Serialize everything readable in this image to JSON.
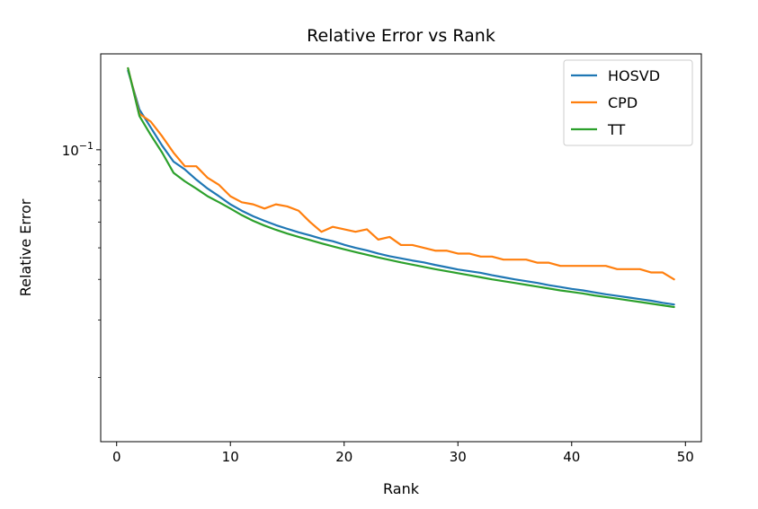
{
  "chart_data": {
    "type": "line",
    "title": "Relative Error vs Rank",
    "xlabel": "Rank",
    "ylabel": "Relative Error",
    "x_scale": "linear",
    "y_scale": "log",
    "xlim": [
      -1.4,
      51.4
    ],
    "ylim": [
      0.0127,
      0.197
    ],
    "x_ticks": [
      {
        "value": 0,
        "label": "0"
      },
      {
        "value": 10,
        "label": "10"
      },
      {
        "value": 20,
        "label": "20"
      },
      {
        "value": 30,
        "label": "30"
      },
      {
        "value": 40,
        "label": "40"
      },
      {
        "value": 50,
        "label": "50"
      }
    ],
    "y_major_ticks": [
      {
        "value": 0.1,
        "base": "10",
        "exponent": "−1"
      }
    ],
    "y_minor_ticks": [
      0.09,
      0.08,
      0.07,
      0.06,
      0.05,
      0.04,
      0.03,
      0.02
    ],
    "grid": false,
    "legend": {
      "position": "top-right"
    },
    "x": [
      1,
      2,
      3,
      4,
      5,
      6,
      7,
      8,
      9,
      10,
      11,
      12,
      13,
      14,
      15,
      16,
      17,
      18,
      19,
      20,
      21,
      22,
      23,
      24,
      25,
      26,
      27,
      28,
      29,
      30,
      31,
      32,
      33,
      34,
      35,
      36,
      37,
      38,
      39,
      40,
      41,
      42,
      43,
      44,
      45,
      46,
      47,
      48,
      49
    ],
    "series": [
      {
        "name": "HOSVD",
        "color": "#1f77b4",
        "values": [
          0.175,
          0.133,
          0.117,
          0.103,
          0.092,
          0.087,
          0.081,
          0.076,
          0.072,
          0.068,
          0.065,
          0.0625,
          0.0605,
          0.0587,
          0.0572,
          0.0558,
          0.0546,
          0.0533,
          0.0524,
          0.0511,
          0.05,
          0.0491,
          0.048,
          0.0471,
          0.0464,
          0.0457,
          0.0451,
          0.0443,
          0.0436,
          0.0429,
          0.0424,
          0.0419,
          0.0412,
          0.0406,
          0.04,
          0.0395,
          0.039,
          0.0384,
          0.0379,
          0.0374,
          0.037,
          0.0365,
          0.036,
          0.0356,
          0.0352,
          0.0348,
          0.0344,
          0.0339,
          0.0335
        ]
      },
      {
        "name": "CPD",
        "color": "#ff7f0e",
        "values": [
          0.178,
          0.129,
          0.122,
          0.11,
          0.098,
          0.089,
          0.089,
          0.082,
          0.078,
          0.072,
          0.069,
          0.068,
          0.066,
          0.068,
          0.067,
          0.065,
          0.06,
          0.056,
          0.058,
          0.057,
          0.056,
          0.057,
          0.053,
          0.054,
          0.051,
          0.051,
          0.05,
          0.049,
          0.049,
          0.048,
          0.048,
          0.047,
          0.047,
          0.046,
          0.046,
          0.046,
          0.045,
          0.045,
          0.044,
          0.044,
          0.044,
          0.044,
          0.044,
          0.043,
          0.043,
          0.043,
          0.042,
          0.042,
          0.04
        ]
      },
      {
        "name": "TT",
        "color": "#2ca02c",
        "values": [
          0.178,
          0.127,
          0.111,
          0.098,
          0.085,
          0.08,
          0.076,
          0.072,
          0.069,
          0.066,
          0.063,
          0.0605,
          0.0585,
          0.0568,
          0.0553,
          0.054,
          0.0528,
          0.0516,
          0.0505,
          0.0495,
          0.0485,
          0.0476,
          0.0467,
          0.0459,
          0.0451,
          0.0444,
          0.0437,
          0.043,
          0.0424,
          0.0418,
          0.0412,
          0.0406,
          0.04,
          0.0395,
          0.039,
          0.0385,
          0.038,
          0.0375,
          0.037,
          0.0366,
          0.0362,
          0.0357,
          0.0353,
          0.0349,
          0.0345,
          0.0341,
          0.0337,
          0.0333,
          0.0329
        ]
      }
    ]
  }
}
